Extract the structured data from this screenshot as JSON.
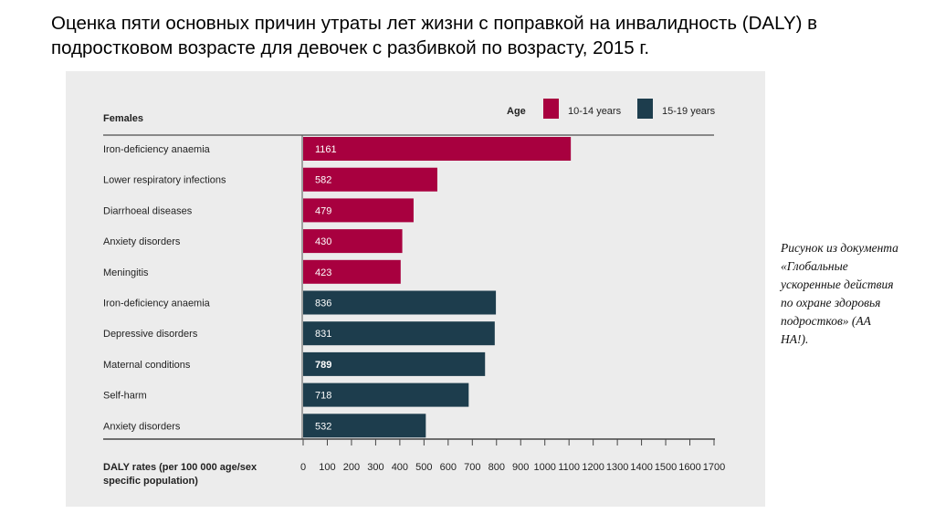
{
  "slide": {
    "title": "Оценка пяти основных причин утраты лет жизни с поправкой на инвалидность (DALY) в подростковом возрасте для девочек с разбивкой по возрасту, 2015 г.",
    "caption_lines": [
      "Рисунок из документа",
      "«Глобальные",
      "ускоренные действия",
      "по охране здоровья",
      "подростков» (АА",
      "НА!)."
    ]
  },
  "chart_data": {
    "type": "bar",
    "orientation": "horizontal",
    "group_label": "Females",
    "legend_title": "Age",
    "legend_position": "top-right",
    "categories": [
      "Iron-deficiency anaemia",
      "Lower respiratory infections",
      "Diarrhoeal diseases",
      "Anxiety disorders",
      "Meningitis",
      "Iron-deficiency anaemia",
      "Depressive disorders",
      "Maternal conditions",
      "Self-harm",
      "Anxiety disorders"
    ],
    "series": [
      {
        "name": "10-14 years",
        "color": "#a8003f",
        "values": [
          1161,
          582,
          479,
          430,
          423,
          null,
          null,
          null,
          null,
          null
        ]
      },
      {
        "name": "15-19 years",
        "color": "#1d3d4d",
        "values": [
          null,
          null,
          null,
          null,
          null,
          836,
          831,
          789,
          718,
          532
        ]
      }
    ],
    "data_labels": [
      "1161",
      "582",
      "479",
      "430",
      "423",
      "836",
      "831",
      "789",
      "718",
      "532"
    ],
    "xlabel": "DALY rates (per 100 000 age/sex specific population)",
    "xlabel_lines": [
      "DALY rates (per 100 000 age/sex",
      "specific population)"
    ],
    "xlim": [
      0,
      1700
    ],
    "xticks": [
      0,
      100,
      200,
      300,
      400,
      500,
      600,
      700,
      800,
      900,
      1000,
      1100,
      1200,
      1300,
      1400,
      1500,
      1600,
      1700
    ],
    "grid": false
  }
}
